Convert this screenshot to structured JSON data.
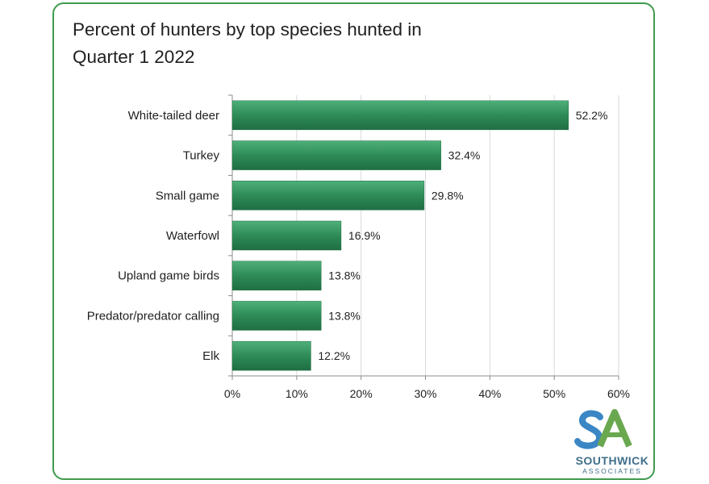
{
  "title_line1": "Percent of hunters by top species hunted in",
  "title_line2": "Quarter 1 2022",
  "colors": {
    "bar": "#2e8b57",
    "bar_dark": "#1f6e43",
    "bar_light": "#4fb07a",
    "border": "#3f9b4e",
    "grid": "#d9d9d9"
  },
  "chart_data": {
    "type": "bar",
    "orientation": "horizontal",
    "categories": [
      "White-tailed deer",
      "Turkey",
      "Small game",
      "Waterfowl",
      "Upland game birds",
      "Predator/predator calling",
      "Elk"
    ],
    "values": [
      52.2,
      32.4,
      29.8,
      16.9,
      13.8,
      13.8,
      12.2
    ],
    "value_labels": [
      "52.2%",
      "32.4%",
      "29.8%",
      "16.9%",
      "13.8%",
      "13.8%",
      "12.2%"
    ],
    "x_ticks": [
      "0%",
      "10%",
      "20%",
      "30%",
      "40%",
      "50%",
      "60%"
    ],
    "xlim": [
      0,
      60
    ],
    "grid": true,
    "legend": "none"
  },
  "logo": {
    "letters": "SA",
    "name": "SOUTHWICK",
    "sub": "ASSOCIATES"
  }
}
